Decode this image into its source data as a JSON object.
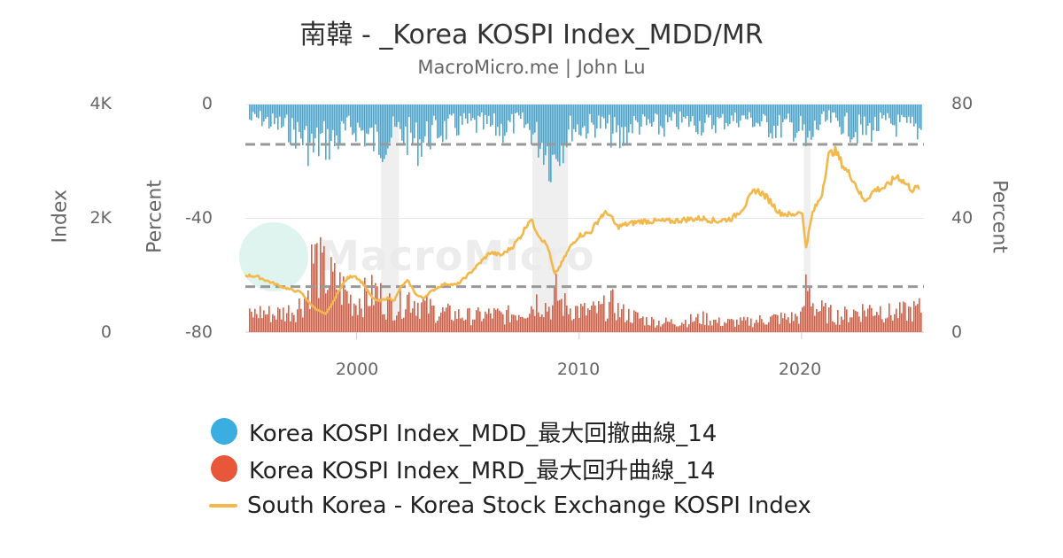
{
  "header": {
    "title": "南韓 - _Korea KOSPI Index_MDD/MR",
    "subtitle": "MacroMicro.me | John Lu"
  },
  "watermark": "MacroMicro",
  "axes": {
    "left_index_title": "Index",
    "left_percent_title": "Percent",
    "right_percent_title": "Percent",
    "left_index_ticks": [
      "4K",
      "2K",
      "0"
    ],
    "left_percent_ticks": [
      "0",
      "-40",
      "-80"
    ],
    "right_percent_ticks": [
      "80",
      "40",
      "0"
    ],
    "x_ticks": [
      "2000",
      "2010",
      "2020"
    ]
  },
  "legend": [
    {
      "label": "Korea KOSPI Index_MDD_最大回撤曲線_14",
      "color": "#3aaee0",
      "shape": "circle"
    },
    {
      "label": "Korea KOSPI Index_MRD_最大回升曲線_14",
      "color": "#e8573a",
      "shape": "circle"
    },
    {
      "label": "South Korea - Korea Stock Exchange KOSPI Index",
      "color": "#f2b84b",
      "shape": "line"
    }
  ],
  "chart_data": {
    "type": "line",
    "x_range": [
      1995,
      2025.5
    ],
    "axes": {
      "left_index": {
        "unit": "Index",
        "range": [
          0,
          4000
        ]
      },
      "left_percent": {
        "unit": "Percent",
        "range": [
          -80,
          0
        ],
        "series": "MDD"
      },
      "right_percent": {
        "unit": "Percent",
        "range": [
          0,
          80
        ],
        "series": "MRD"
      }
    },
    "reference_lines": [
      {
        "axis": "left_percent",
        "value": -14,
        "style": "dashed",
        "color": "#999999"
      },
      {
        "axis": "right_percent",
        "value": 16,
        "style": "dashed",
        "color": "#999999"
      }
    ],
    "shaded_periods": [
      [
        2001.1,
        2001.9
      ],
      [
        2007.9,
        2009.5
      ],
      [
        2020.1,
        2020.4
      ]
    ],
    "series": [
      {
        "name": "Korea KOSPI Index_MDD_最大回撤曲線_14",
        "kind": "bar-down",
        "axis": "left_percent",
        "color": "#3aaee0",
        "x": [
          1995.1,
          1995.6,
          1996.2,
          1996.8,
          1997.3,
          1997.8,
          1998.0,
          1998.4,
          1998.9,
          1999.5,
          2000.0,
          2000.4,
          2000.9,
          2001.3,
          2001.8,
          2002.3,
          2002.7,
          2003.2,
          2003.6,
          2004.3,
          2004.9,
          2005.5,
          2006.1,
          2006.6,
          2007.2,
          2007.7,
          2008.1,
          2008.5,
          2008.8,
          2008.9,
          2009.2,
          2009.6,
          2010.3,
          2010.9,
          2011.5,
          2011.8,
          2012.4,
          2013.0,
          2013.6,
          2014.3,
          2015.0,
          2015.7,
          2016.2,
          2016.8,
          2017.5,
          2018.1,
          2018.8,
          2019.4,
          2020.0,
          2020.2,
          2020.6,
          2021.2,
          2021.8,
          2022.3,
          2022.8,
          2023.4,
          2024.0,
          2024.6,
          2025.1,
          2025.4
        ],
        "values": [
          -8,
          -7,
          -10,
          -12,
          -15,
          -20,
          -24,
          -18,
          -20,
          -14,
          -12,
          -16,
          -20,
          -18,
          -14,
          -17,
          -20,
          -16,
          -14,
          -12,
          -10,
          -11,
          -12,
          -13,
          -9,
          -12,
          -18,
          -22,
          -30,
          -23,
          -20,
          -12,
          -12,
          -10,
          -15,
          -19,
          -10,
          -11,
          -12,
          -9,
          -9,
          -11,
          -9,
          -8,
          -7,
          -10,
          -12,
          -11,
          -14,
          -24,
          -12,
          -8,
          -10,
          -13,
          -14,
          -11,
          -10,
          -12,
          -13,
          -13
        ]
      },
      {
        "name": "Korea KOSPI Index_MRD_最大回升曲線_14",
        "kind": "bar-up",
        "axis": "right_percent",
        "color": "#e8573a",
        "x": [
          1995.1,
          1995.6,
          1996.2,
          1996.8,
          1997.3,
          1997.8,
          1998.0,
          1998.4,
          1998.9,
          1999.3,
          1999.8,
          2000.4,
          2000.9,
          2001.3,
          2001.8,
          2002.3,
          2002.7,
          2003.2,
          2003.6,
          2004.3,
          2004.9,
          2005.5,
          2006.1,
          2006.6,
          2007.2,
          2007.7,
          2008.1,
          2008.5,
          2008.8,
          2008.9,
          2009.2,
          2009.6,
          2010.3,
          2010.9,
          2011.5,
          2011.8,
          2012.4,
          2013.0,
          2013.6,
          2014.3,
          2015.0,
          2015.7,
          2016.2,
          2016.8,
          2017.5,
          2018.1,
          2018.8,
          2019.4,
          2020.0,
          2020.2,
          2020.6,
          2021.2,
          2021.8,
          2022.3,
          2022.8,
          2023.4,
          2024.0,
          2024.6,
          2025.1,
          2025.4
        ],
        "values": [
          8,
          10,
          9,
          10,
          12,
          20,
          38,
          30,
          25,
          22,
          15,
          18,
          20,
          14,
          13,
          18,
          15,
          12,
          10,
          9,
          8,
          8,
          9,
          8,
          10,
          12,
          16,
          13,
          12,
          20,
          14,
          12,
          10,
          11,
          14,
          10,
          8,
          6,
          5,
          5,
          6,
          7,
          5,
          5,
          5,
          6,
          7,
          7,
          8,
          24,
          12,
          9,
          8,
          10,
          11,
          12,
          9,
          10,
          11,
          12
        ]
      },
      {
        "name": "South Korea - Korea Stock Exchange KOSPI Index",
        "kind": "line",
        "axis": "left_index",
        "color": "#f2b84b",
        "x": [
          1995.0,
          1995.5,
          1996.0,
          1996.5,
          1997.0,
          1997.5,
          1997.9,
          1998.2,
          1998.6,
          1998.9,
          1999.3,
          1999.6,
          1999.9,
          2000.3,
          2000.7,
          2001.0,
          2001.4,
          2001.7,
          2002.0,
          2002.3,
          2002.7,
          2003.0,
          2003.3,
          2003.7,
          2004.0,
          2004.5,
          2005.0,
          2005.5,
          2006.0,
          2006.5,
          2007.0,
          2007.4,
          2007.8,
          2008.2,
          2008.6,
          2008.9,
          2009.2,
          2009.6,
          2010.0,
          2010.5,
          2011.0,
          2011.3,
          2011.7,
          2012.2,
          2012.8,
          2013.5,
          2014.2,
          2014.8,
          2015.5,
          2016.2,
          2016.9,
          2017.4,
          2017.9,
          2018.2,
          2018.6,
          2019.0,
          2019.6,
          2020.0,
          2020.2,
          2020.5,
          2020.9,
          2021.2,
          2021.5,
          2021.9,
          2022.3,
          2022.8,
          2023.3,
          2023.8,
          2024.3,
          2024.7,
          2025.0,
          2025.3
        ],
        "values": [
          1000,
          980,
          900,
          820,
          750,
          700,
          500,
          400,
          310,
          500,
          800,
          950,
          1000,
          850,
          600,
          540,
          600,
          560,
          800,
          900,
          650,
          600,
          700,
          800,
          850,
          830,
          1000,
          1200,
          1400,
          1350,
          1500,
          1700,
          2000,
          1700,
          1500,
          1000,
          1200,
          1500,
          1700,
          1750,
          2050,
          2100,
          1850,
          1900,
          1950,
          1950,
          1950,
          1980,
          2000,
          1950,
          2000,
          2200,
          2500,
          2450,
          2300,
          2100,
          2050,
          2150,
          1500,
          2100,
          2400,
          3100,
          3200,
          2900,
          2700,
          2300,
          2500,
          2550,
          2750,
          2600,
          2500,
          2550
        ]
      }
    ]
  }
}
